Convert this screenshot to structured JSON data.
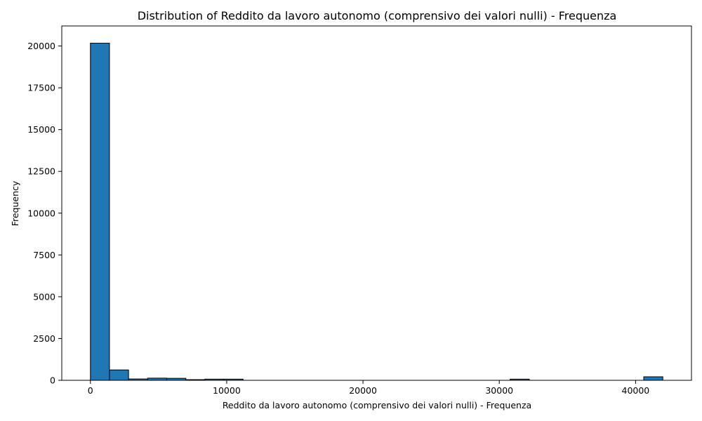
{
  "chart_data": {
    "type": "bar",
    "title": "Distribution of Reddito da lavoro autonomo (comprensivo dei valori nulli) - Frequenza",
    "xlabel": "Reddito da lavoro autonomo (comprensivo dei valori nulli) - Frequenza",
    "ylabel": "Frequency",
    "bar_color": "#1f77b4",
    "edge_color": "#000000",
    "grid": false,
    "xlim": [
      -2100,
      44100
    ],
    "ylim": [
      0,
      21200
    ],
    "xticks": [
      0,
      10000,
      20000,
      30000,
      40000
    ],
    "yticks": [
      0,
      2500,
      5000,
      7500,
      10000,
      12500,
      15000,
      17500,
      20000
    ],
    "bin_width": 1400,
    "bins": [
      {
        "x0": 0,
        "x1": 1400,
        "value": 20170
      },
      {
        "x0": 1400,
        "x1": 2800,
        "value": 620
      },
      {
        "x0": 2800,
        "x1": 4200,
        "value": 80
      },
      {
        "x0": 4200,
        "x1": 5600,
        "value": 130
      },
      {
        "x0": 5600,
        "x1": 7000,
        "value": 120
      },
      {
        "x0": 7000,
        "x1": 8400,
        "value": 40
      },
      {
        "x0": 8400,
        "x1": 9800,
        "value": 70
      },
      {
        "x0": 9800,
        "x1": 11200,
        "value": 70
      },
      {
        "x0": 30800,
        "x1": 32200,
        "value": 70
      },
      {
        "x0": 40600,
        "x1": 42000,
        "value": 210
      }
    ]
  }
}
